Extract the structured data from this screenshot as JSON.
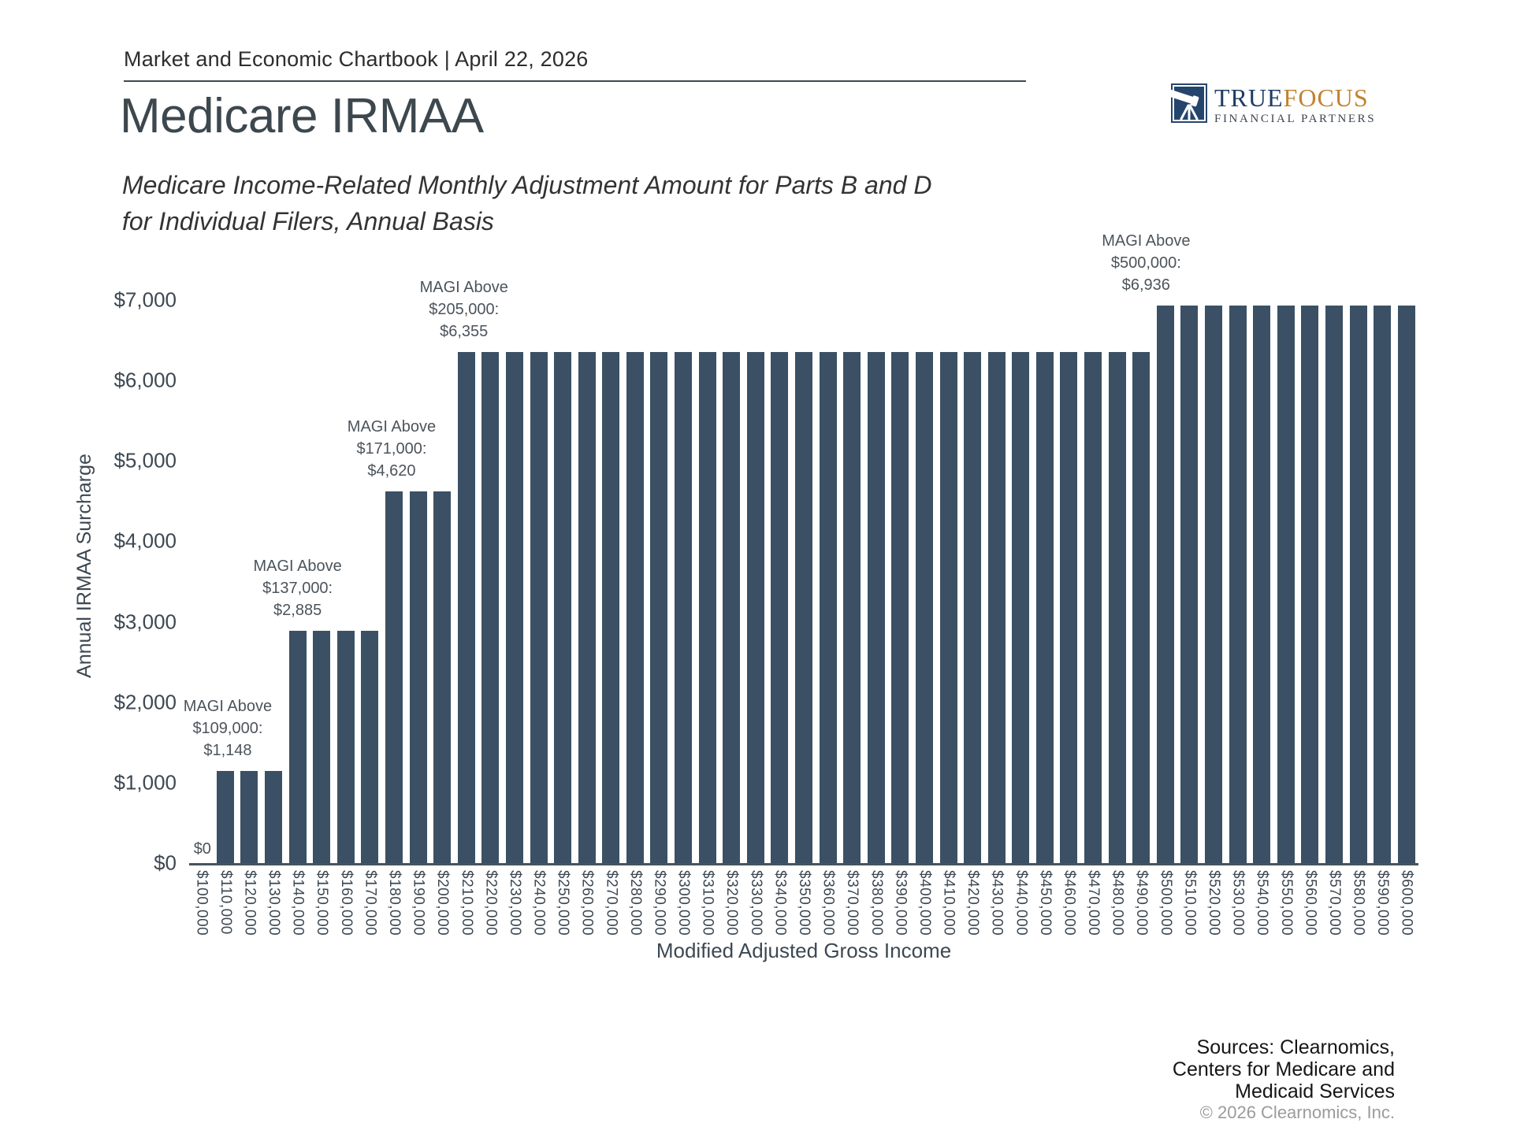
{
  "header": {
    "chartbook_line": "Market and Economic Chartbook | April 22, 2026"
  },
  "logo": {
    "brand_true": "TRUE",
    "brand_focus": "FOCUS",
    "tagline": "FINANCIAL PARTNERS",
    "navy": "#26456d",
    "gold": "#c08330",
    "icon": "telescope-icon"
  },
  "page": {
    "title": "Medicare IRMAA",
    "subtitle_line1": "Medicare Income-Related Monthly Adjustment Amount for Parts B and D",
    "subtitle_line2": "for Individual Filers, Annual Basis"
  },
  "chart_data": {
    "type": "bar",
    "title": "Medicare IRMAA",
    "xlabel": "Modified Adjusted Gross Income",
    "ylabel": "Annual IRMAA Surcharge",
    "ylim": [
      0,
      7000
    ],
    "grid": false,
    "legend": "none",
    "bar_color": "#3b5064",
    "yticks": [
      "$0",
      "$1,000",
      "$2,000",
      "$3,000",
      "$4,000",
      "$5,000",
      "$6,000",
      "$7,000"
    ],
    "categories": [
      "$100,000",
      "$110,000",
      "$120,000",
      "$130,000",
      "$140,000",
      "$150,000",
      "$160,000",
      "$170,000",
      "$180,000",
      "$190,000",
      "$200,000",
      "$210,000",
      "$220,000",
      "$230,000",
      "$240,000",
      "$250,000",
      "$260,000",
      "$270,000",
      "$280,000",
      "$290,000",
      "$300,000",
      "$310,000",
      "$320,000",
      "$330,000",
      "$340,000",
      "$350,000",
      "$360,000",
      "$370,000",
      "$380,000",
      "$390,000",
      "$400,000",
      "$410,000",
      "$420,000",
      "$430,000",
      "$440,000",
      "$450,000",
      "$460,000",
      "$470,000",
      "$480,000",
      "$490,000",
      "$500,000",
      "$510,000",
      "$520,000",
      "$530,000",
      "$540,000",
      "$550,000",
      "$560,000",
      "$570,000",
      "$580,000",
      "$590,000",
      "$600,000"
    ],
    "values": [
      0,
      1148,
      1148,
      1148,
      2885,
      2885,
      2885,
      2885,
      4620,
      4620,
      4620,
      6355,
      6355,
      6355,
      6355,
      6355,
      6355,
      6355,
      6355,
      6355,
      6355,
      6355,
      6355,
      6355,
      6355,
      6355,
      6355,
      6355,
      6355,
      6355,
      6355,
      6355,
      6355,
      6355,
      6355,
      6355,
      6355,
      6355,
      6355,
      6355,
      6936,
      6936,
      6936,
      6936,
      6936,
      6936,
      6936,
      6936,
      6936,
      6936,
      6936
    ],
    "annotations": [
      {
        "lines": [
          "$0"
        ],
        "anchor_index": 0.05,
        "value": 0
      },
      {
        "lines": [
          "MAGI Above",
          "$109,000:",
          "$1,148"
        ],
        "anchor_index": 1.1,
        "value": 1148
      },
      {
        "lines": [
          "MAGI Above",
          "$137,000:",
          "$2,885"
        ],
        "anchor_index": 4.0,
        "value": 2885
      },
      {
        "lines": [
          "MAGI Above",
          "$171,000:",
          "$4,620"
        ],
        "anchor_index": 7.9,
        "value": 4620
      },
      {
        "lines": [
          "MAGI Above",
          "$205,000:",
          "$6,355"
        ],
        "anchor_index": 10.9,
        "value": 6355
      },
      {
        "lines": [
          "MAGI Above",
          "$500,000:",
          "$6,936"
        ],
        "anchor_index": 39.2,
        "value": 6936
      }
    ]
  },
  "footer": {
    "sources_lines": [
      "Sources: Clearnomics,",
      "Centers for Medicare and",
      "Medicaid Services"
    ],
    "copyright": "© 2026 Clearnomics, Inc."
  }
}
